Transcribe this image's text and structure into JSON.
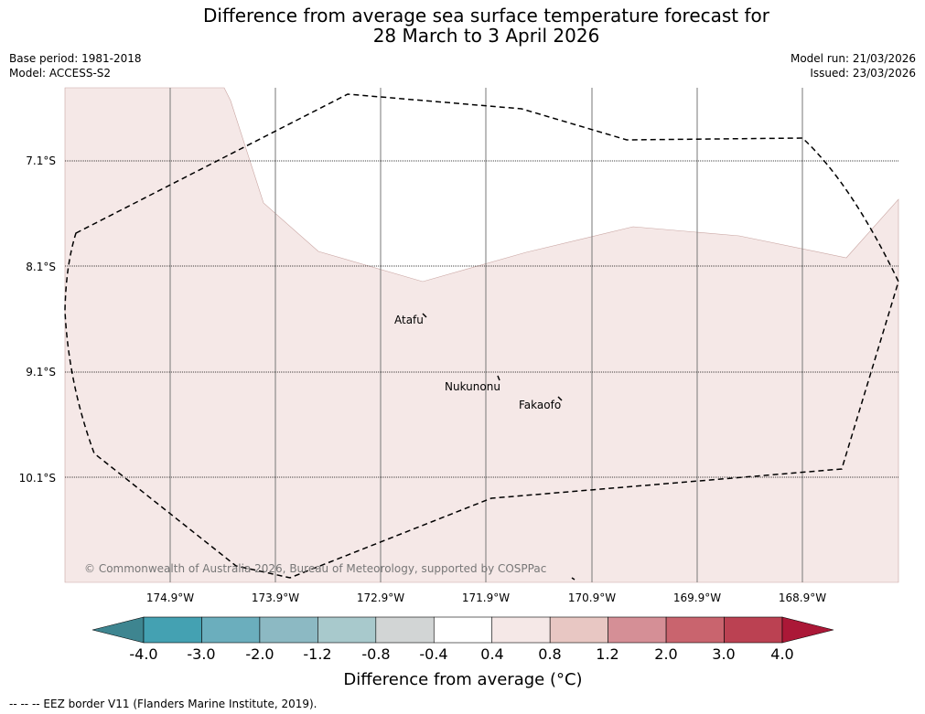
{
  "title": "Difference from average sea surface temperature forecast for\n28 March to 3 April 2026",
  "meta": {
    "base_period": "Base period: 1981-2018",
    "model": "Model: ACCESS-S2",
    "model_run": "Model run: 21/03/2026",
    "issued": "Issued: 23/03/2026"
  },
  "map": {
    "lat_labels": [
      "7.1°S",
      "8.1°S",
      "9.1°S",
      "10.1°S"
    ],
    "lon_labels": [
      "174.9°W",
      "173.9°W",
      "172.9°W",
      "171.9°W",
      "170.9°W",
      "169.9°W",
      "168.9°W"
    ],
    "places": [
      "Atafu",
      "Nukunonu",
      "Fakaofo"
    ],
    "copyright": "© Commonwealth of Australia 2026, Bureau of Meteorology, supported by COSPPac",
    "colors": {
      "anomaly_fill": "#f5e8e7",
      "eez_line": "#000000",
      "grid": "#777777"
    }
  },
  "colorbar": {
    "ticks": [
      "-4.0",
      "-3.0",
      "-2.0",
      "-1.2",
      "-0.8",
      "-0.4",
      "0.4",
      "0.8",
      "1.2",
      "2.0",
      "3.0",
      "4.0"
    ],
    "colors": [
      "#3e8590",
      "#44a1b2",
      "#6baebd",
      "#8cb9c3",
      "#a8c9cc",
      "#d2d5d5",
      "#ffffff",
      "#f5e8e7",
      "#e8c7c3",
      "#d58f96",
      "#c9646e",
      "#bb4152",
      "#ab1837"
    ],
    "title": "Difference from average (°C)"
  },
  "footnote": "--  --  -- EEZ border V11 (Flanders Marine Institute, 2019)."
}
